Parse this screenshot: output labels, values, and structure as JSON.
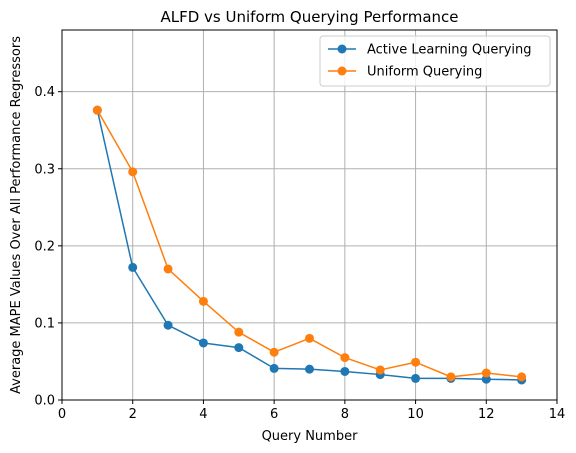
{
  "chart_data": {
    "type": "line",
    "title": "ALFD vs Uniform Querying Performance",
    "xlabel": "Query Number",
    "ylabel": "Average MAPE Values Over All Performance Regressors",
    "xlim": [
      0,
      14
    ],
    "ylim": [
      0,
      0.48
    ],
    "xticks": [
      0,
      2,
      4,
      6,
      8,
      10,
      12,
      14
    ],
    "yticks": [
      0.0,
      0.1,
      0.2,
      0.3,
      0.4
    ],
    "xtick_labels": [
      "0",
      "2",
      "4",
      "6",
      "8",
      "10",
      "12",
      "14"
    ],
    "ytick_labels": [
      "0.0",
      "0.1",
      "0.2",
      "0.3",
      "0.4"
    ],
    "grid": true,
    "legend_position": "top-right",
    "x": [
      1,
      2,
      3,
      4,
      5,
      6,
      7,
      8,
      9,
      10,
      11,
      12,
      13
    ],
    "series": [
      {
        "name": "Active Learning Querying",
        "color": "#1f77b4",
        "marker": "circle",
        "values": [
          0.376,
          0.172,
          0.097,
          0.074,
          0.068,
          0.041,
          0.04,
          0.037,
          0.033,
          0.028,
          0.028,
          0.027,
          0.026
        ]
      },
      {
        "name": "Uniform Querying",
        "color": "#ff7f0e",
        "marker": "circle",
        "values": [
          0.376,
          0.296,
          0.17,
          0.128,
          0.088,
          0.062,
          0.08,
          0.055,
          0.039,
          0.049,
          0.03,
          0.035,
          0.03
        ]
      }
    ]
  }
}
